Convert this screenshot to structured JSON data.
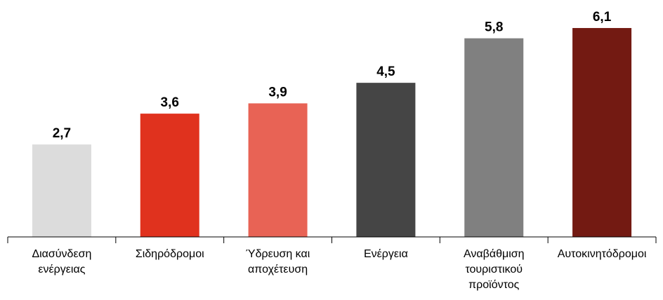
{
  "chart_data": {
    "type": "bar",
    "categories": [
      "Διασύνδεση ενέργειας",
      "Σιδηρόδρομοι",
      "Ύδρευση και αποχέτευση",
      "Ενέργεια",
      "Αναβάθμιση τουριστικού προϊόντος",
      "Αυτοκινητόδρομοι"
    ],
    "values": [
      2.7,
      3.6,
      3.9,
      4.5,
      5.8,
      6.1
    ],
    "value_labels": [
      "2,7",
      "3,6",
      "3,9",
      "4,5",
      "5,8",
      "6,1"
    ],
    "colors": [
      "#dcdcdc",
      "#e0321e",
      "#e86355",
      "#454545",
      "#808080",
      "#731a12"
    ],
    "ylim": [
      0,
      7
    ],
    "grid": false
  }
}
